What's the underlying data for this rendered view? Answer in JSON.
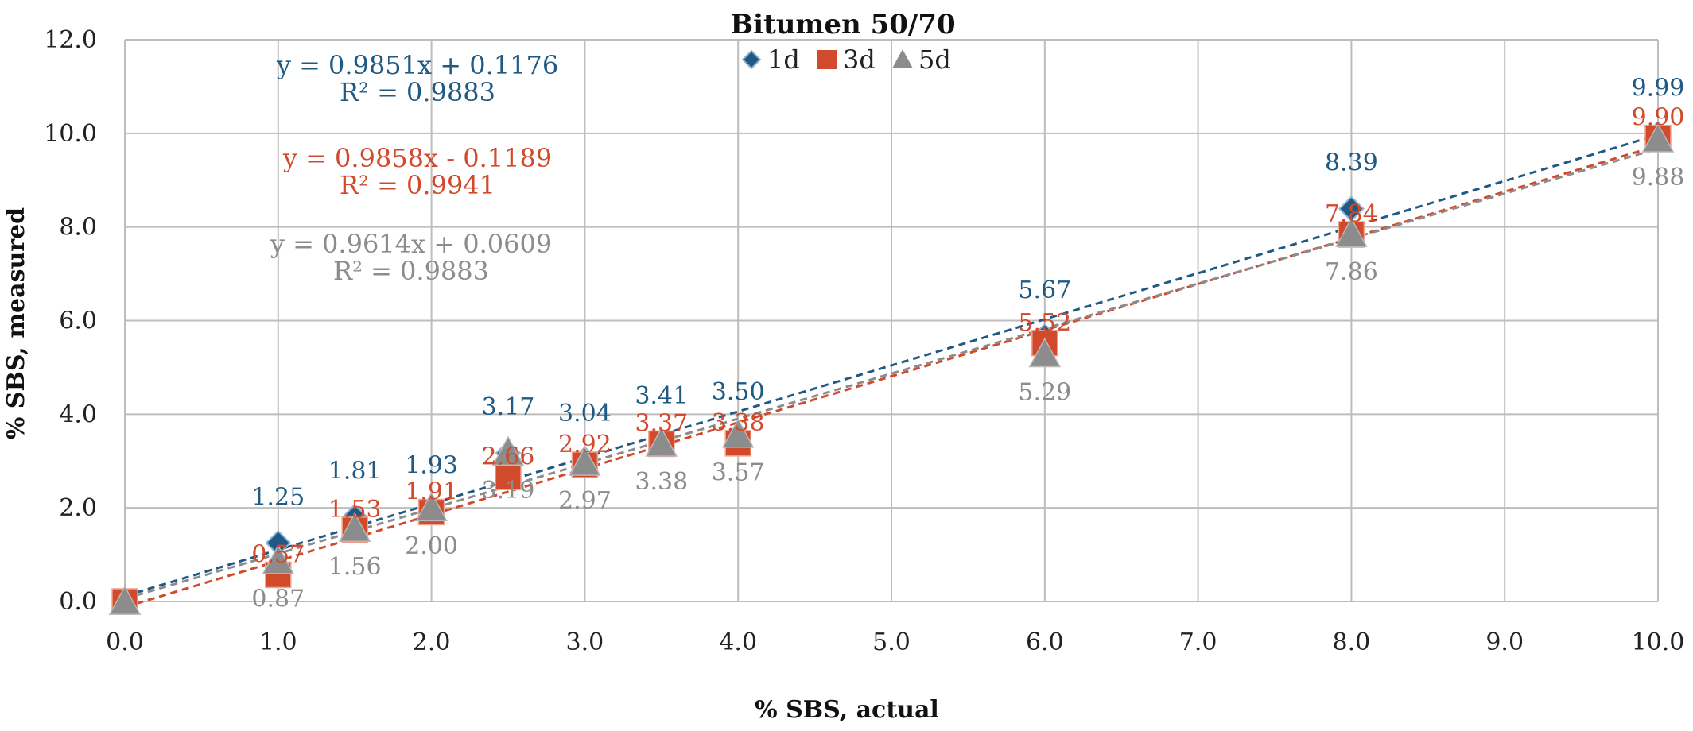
{
  "chart_data": {
    "type": "scatter",
    "title": "Bitumen 50/70",
    "xlabel": "% SBS, actual",
    "ylabel": "% SBS, measured",
    "xlim": [
      0,
      10
    ],
    "ylim": [
      0,
      12
    ],
    "xticks": [
      "0.0",
      "1.0",
      "2.0",
      "3.0",
      "4.0",
      "5.0",
      "6.0",
      "7.0",
      "8.0",
      "9.0",
      "10.0"
    ],
    "yticks": [
      "0.0",
      "2.0",
      "4.0",
      "6.0",
      "8.0",
      "10.0",
      "12.0"
    ],
    "grid": true,
    "legend_position": "top-center",
    "x": [
      0,
      1,
      1.5,
      2,
      2.5,
      3,
      3.5,
      4,
      6,
      8,
      10
    ],
    "series": [
      {
        "name": "1d",
        "marker": "diamond",
        "color": "#1F5A85",
        "values": [
          0,
          1.25,
          1.81,
          1.93,
          3.17,
          3.04,
          3.41,
          3.5,
          5.67,
          8.39,
          9.99
        ],
        "labels": [
          "",
          "1.25",
          "1.81",
          "1.93",
          "3.17",
          "3.04",
          "3.41",
          "3.50",
          "5.67",
          "8.39",
          "9.99"
        ],
        "trend": {
          "slope": 0.9851,
          "intercept": 0.1176
        },
        "equation": "y = 0.9851x + 0.1176",
        "r2": "R² = 0.9883"
      },
      {
        "name": "3d",
        "marker": "square",
        "color": "#D24A2C",
        "values": [
          0,
          0.57,
          1.53,
          1.91,
          2.66,
          2.92,
          3.37,
          3.38,
          5.52,
          7.84,
          9.9
        ],
        "labels": [
          "",
          "0.57",
          "1.53",
          "1.91",
          "2.66",
          "2.92",
          "3.37",
          "3.38",
          "5.52",
          "7.84",
          "9.90"
        ],
        "trend": {
          "slope": 0.9858,
          "intercept": -0.1189
        },
        "equation": "y = 0.9858x - 0.1189",
        "r2": "R² = 0.9941"
      },
      {
        "name": "5d",
        "marker": "triangle",
        "color": "#8C8C8C",
        "values": [
          0,
          0.87,
          1.56,
          2.0,
          3.19,
          2.97,
          3.38,
          3.57,
          5.29,
          7.86,
          9.88
        ],
        "labels": [
          "",
          "0.87",
          "1.56",
          "2.00",
          "3.19",
          "2.97",
          "3.38",
          "3.57",
          "5.29",
          "7.86",
          "9.88"
        ],
        "trend": {
          "slope": 0.9614,
          "intercept": 0.0609
        },
        "equation": "y = 0.9614x + 0.0609",
        "r2": "R² = 0.9883"
      }
    ]
  }
}
